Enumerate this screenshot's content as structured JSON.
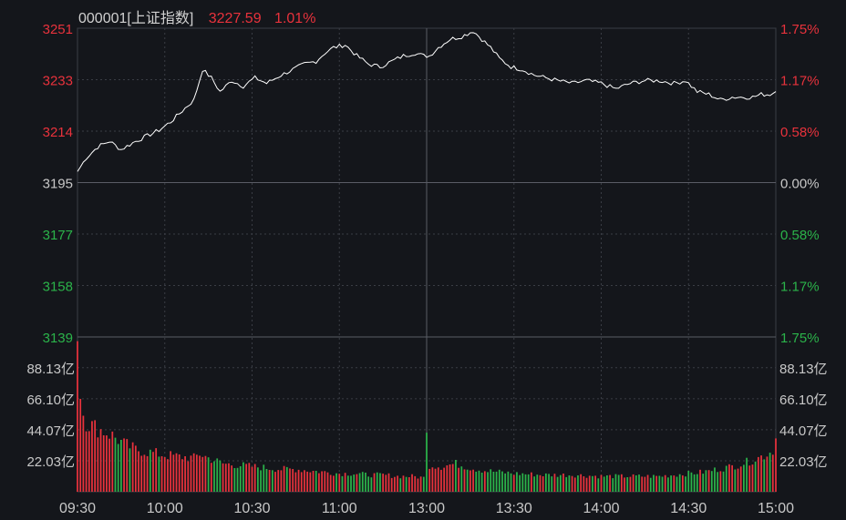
{
  "header": {
    "code": "000001",
    "name": "[上证指数]",
    "price": "3227.59",
    "change_pct": "1.01%"
  },
  "colors": {
    "background": "#14161b",
    "up": "#e8323c",
    "down": "#2bb34a",
    "neutral": "#c8c8c8",
    "grid": "#3a3d45",
    "line": "#ffffff"
  },
  "chart_data": {
    "type": "line",
    "prev_close": 3195,
    "price_axis": {
      "ticks_left": [
        "3251",
        "3233",
        "3214",
        "3195",
        "3177",
        "3158",
        "3139"
      ],
      "ticks_right": [
        "1.75%",
        "1.17%",
        "0.58%",
        "0.00%",
        "0.58%",
        "1.17%",
        "1.75%"
      ],
      "ylim": [
        3139,
        3251
      ]
    },
    "volume_axis": {
      "ticks": [
        "88.13亿",
        "66.10亿",
        "44.07亿",
        "22.03亿"
      ],
      "tick_values": [
        88.13,
        66.1,
        44.07,
        22.03
      ],
      "ymax": 110
    },
    "time_ticks": [
      "09:30",
      "10:00",
      "10:30",
      "11:00",
      "13:00",
      "13:30",
      "14:00",
      "14:30",
      "15:00"
    ],
    "price_keypoints": [
      [
        0,
        3199
      ],
      [
        3,
        3204
      ],
      [
        7,
        3208
      ],
      [
        11,
        3210
      ],
      [
        15,
        3207
      ],
      [
        20,
        3210
      ],
      [
        24,
        3212
      ],
      [
        28,
        3214
      ],
      [
        32,
        3217
      ],
      [
        36,
        3221
      ],
      [
        40,
        3225
      ],
      [
        43,
        3236
      ],
      [
        46,
        3233
      ],
      [
        49,
        3228
      ],
      [
        53,
        3232
      ],
      [
        57,
        3230
      ],
      [
        61,
        3233
      ],
      [
        65,
        3231
      ],
      [
        70,
        3234
      ],
      [
        74,
        3236
      ],
      [
        78,
        3238
      ],
      [
        82,
        3239
      ],
      [
        85,
        3242
      ],
      [
        88,
        3244
      ],
      [
        92,
        3245
      ],
      [
        96,
        3241
      ],
      [
        100,
        3238
      ],
      [
        104,
        3237
      ],
      [
        108,
        3239
      ],
      [
        112,
        3241
      ],
      [
        116,
        3242
      ],
      [
        119,
        3241
      ],
      [
        121,
        3241
      ],
      [
        124,
        3244
      ],
      [
        128,
        3247
      ],
      [
        132,
        3248
      ],
      [
        136,
        3250
      ],
      [
        139,
        3247
      ],
      [
        142,
        3244
      ],
      [
        145,
        3240
      ],
      [
        149,
        3237
      ],
      [
        153,
        3236
      ],
      [
        157,
        3234
      ],
      [
        161,
        3233
      ],
      [
        165,
        3232
      ],
      [
        170,
        3231
      ],
      [
        175,
        3232
      ],
      [
        180,
        3231
      ],
      [
        185,
        3229
      ],
      [
        190,
        3231
      ],
      [
        195,
        3232
      ],
      [
        200,
        3232
      ],
      [
        205,
        3231
      ],
      [
        209,
        3232
      ],
      [
        213,
        3228
      ],
      [
        217,
        3227
      ],
      [
        221,
        3225
      ],
      [
        225,
        3226
      ],
      [
        229,
        3226
      ],
      [
        232,
        3226
      ],
      [
        235,
        3227
      ],
      [
        238,
        3227
      ],
      [
        240,
        3228
      ]
    ],
    "volume_keypoints": [
      [
        0,
        107
      ],
      [
        1,
        66
      ],
      [
        2,
        54
      ],
      [
        3,
        50
      ],
      [
        5,
        47
      ],
      [
        8,
        44
      ],
      [
        12,
        40
      ],
      [
        16,
        34
      ],
      [
        20,
        30
      ],
      [
        25,
        28
      ],
      [
        30,
        26
      ],
      [
        35,
        25
      ],
      [
        40,
        24
      ],
      [
        42,
        27
      ],
      [
        45,
        24
      ],
      [
        50,
        20
      ],
      [
        55,
        19
      ],
      [
        60,
        18
      ],
      [
        65,
        17
      ],
      [
        70,
        16
      ],
      [
        75,
        16
      ],
      [
        80,
        15
      ],
      [
        85,
        14
      ],
      [
        90,
        13
      ],
      [
        95,
        13
      ],
      [
        100,
        12
      ],
      [
        105,
        12
      ],
      [
        110,
        11
      ],
      [
        115,
        11
      ],
      [
        119,
        10
      ],
      [
        120,
        42
      ],
      [
        121,
        19
      ],
      [
        125,
        18
      ],
      [
        130,
        20
      ],
      [
        135,
        17
      ],
      [
        140,
        15
      ],
      [
        145,
        14
      ],
      [
        150,
        13
      ],
      [
        160,
        12
      ],
      [
        170,
        12
      ],
      [
        180,
        11
      ],
      [
        190,
        11
      ],
      [
        200,
        11
      ],
      [
        205,
        12
      ],
      [
        210,
        13
      ],
      [
        215,
        14
      ],
      [
        220,
        16
      ],
      [
        225,
        18
      ],
      [
        230,
        21
      ],
      [
        235,
        25
      ],
      [
        238,
        28
      ],
      [
        239,
        30
      ],
      [
        240,
        38
      ]
    ]
  }
}
